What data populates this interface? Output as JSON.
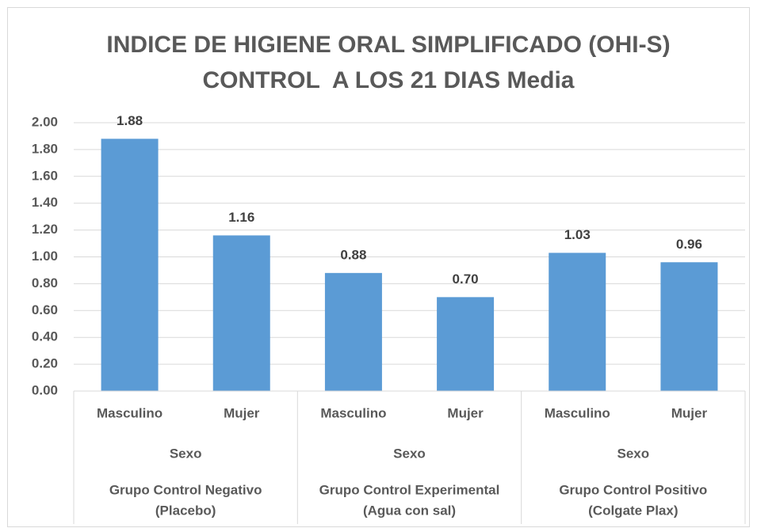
{
  "chart_data": {
    "type": "bar",
    "title": [
      "INDICE DE HIGIENE ORAL SIMPLIFICADO (OHI-S)",
      "CONTROL  A LOS 21 DIAS Media"
    ],
    "categories": [
      "Masculino",
      "Mujer",
      "Masculino",
      "Mujer",
      "Masculino",
      "Mujer"
    ],
    "groups": [
      {
        "level": "Sexo",
        "name": [
          "Grupo Control Negativo",
          "(Placebo)"
        ]
      },
      {
        "level": "Sexo",
        "name": [
          "Grupo Control Experimental",
          "(Agua con sal)"
        ]
      },
      {
        "level": "Sexo",
        "name": [
          "Grupo Control Positivo",
          "(Colgate Plax)"
        ]
      }
    ],
    "values": [
      1.88,
      1.16,
      0.88,
      0.7,
      1.03,
      0.96
    ],
    "value_labels": [
      "1.88",
      "1.16",
      "0.88",
      "0.70",
      "1.03",
      "0.96"
    ],
    "color": "#5b9bd5",
    "ylim": [
      0,
      2
    ],
    "yticks": [
      {
        "value": 0,
        "label": "0.00"
      },
      {
        "value": 0.2,
        "label": "0.20"
      },
      {
        "value": 0.4,
        "label": "0.40"
      },
      {
        "value": 0.6,
        "label": "0.60"
      },
      {
        "value": 0.8,
        "label": "0.80"
      },
      {
        "value": 1,
        "label": "1.00"
      },
      {
        "value": 1.2,
        "label": "1.20"
      },
      {
        "value": 1.4,
        "label": "1.40"
      },
      {
        "value": 1.6,
        "label": "1.60"
      },
      {
        "value": 1.8,
        "label": "1.80"
      },
      {
        "value": 2,
        "label": "2.00"
      }
    ],
    "grid": true
  }
}
